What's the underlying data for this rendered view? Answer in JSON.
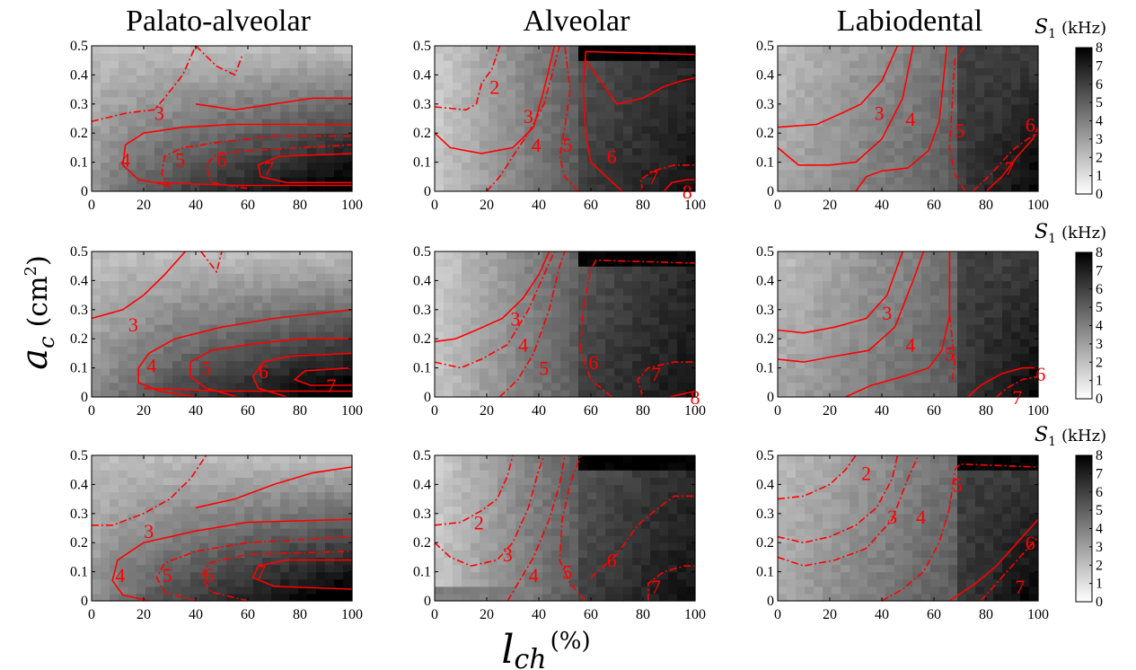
{
  "figure": {
    "columns": [
      "Palato-alveolar",
      "Alveolar",
      "Labiodental"
    ],
    "xlabel_main": "l",
    "xlabel_sub": "ch",
    "xlabel_unit": "(%)",
    "ylabel_main": "a",
    "ylabel_sub": "c",
    "ylabel_unit_open": "(cm",
    "ylabel_unit_sup": "2",
    "ylabel_unit_close": ")",
    "colorbar_label_main": "S",
    "colorbar_label_sub": "1",
    "colorbar_label_unit": "(kHz)",
    "colors": {
      "contour": "#ff0000",
      "frame": "#000000"
    }
  },
  "chart_data": [
    {
      "type": "heatmap",
      "row": 1,
      "column": "Palato-alveolar",
      "xlabel": "",
      "ylabel": "",
      "xlim": [
        0,
        100
      ],
      "ylim": [
        0,
        0.5
      ],
      "xticks": [
        "0",
        "20",
        "40",
        "60",
        "80",
        "100"
      ],
      "yticks": [
        "0",
        "0.1",
        "0.2",
        "0.3",
        "0.4",
        "0.5"
      ],
      "contour_labels": [
        {
          "text": "3",
          "x": 26,
          "y": 0.27
        },
        {
          "text": "4",
          "x": 13,
          "y": 0.11
        },
        {
          "text": "5",
          "x": 34,
          "y": 0.11
        },
        {
          "text": "6",
          "x": 50,
          "y": 0.11
        },
        {
          "text": "7",
          "x": 68,
          "y": 0.08
        }
      ]
    },
    {
      "type": "heatmap",
      "row": 1,
      "column": "Alveolar",
      "xlabel": "",
      "ylabel": "",
      "xlim": [
        0,
        100
      ],
      "ylim": [
        0,
        0.5
      ],
      "xticks": [
        "0",
        "20",
        "40",
        "60",
        "80",
        "100"
      ],
      "yticks": [
        "0",
        "0.1",
        "0.2",
        "0.3",
        "0.4",
        "0.5"
      ],
      "contour_labels": [
        {
          "text": "2",
          "x": 23,
          "y": 0.36
        },
        {
          "text": "3",
          "x": 36,
          "y": 0.26
        },
        {
          "text": "4",
          "x": 39,
          "y": 0.16
        },
        {
          "text": "5",
          "x": 51,
          "y": 0.16
        },
        {
          "text": "6",
          "x": 68,
          "y": 0.12
        },
        {
          "text": "7",
          "x": 84,
          "y": 0.05
        },
        {
          "text": "8",
          "x": 97,
          "y": 0.0
        }
      ]
    },
    {
      "type": "heatmap",
      "row": 1,
      "column": "Labiodental",
      "xlabel": "",
      "ylabel": "",
      "xlim": [
        0,
        100
      ],
      "ylim": [
        0,
        0.5
      ],
      "xticks": [
        "0",
        "20",
        "40",
        "60",
        "80",
        "100"
      ],
      "yticks": [
        "0",
        "0.1",
        "0.2",
        "0.3",
        "0.4",
        "0.5"
      ],
      "contour_labels": [
        {
          "text": "3",
          "x": 39,
          "y": 0.27
        },
        {
          "text": "4",
          "x": 51,
          "y": 0.25
        },
        {
          "text": "5",
          "x": 70,
          "y": 0.21
        },
        {
          "text": "6",
          "x": 97,
          "y": 0.23
        },
        {
          "text": "7",
          "x": 89,
          "y": 0.08
        }
      ]
    },
    {
      "type": "heatmap",
      "row": 2,
      "column": "Palato-alveolar",
      "xlabel": "",
      "ylabel": "",
      "xlim": [
        0,
        100
      ],
      "ylim": [
        0,
        0.5
      ],
      "xticks": [
        "0",
        "20",
        "40",
        "60",
        "80",
        "100"
      ],
      "yticks": [
        "0",
        "0.1",
        "0.2",
        "0.3",
        "0.4",
        "0.5"
      ],
      "contour_labels": [
        {
          "text": "3",
          "x": 16,
          "y": 0.25
        },
        {
          "text": "4",
          "x": 23,
          "y": 0.11
        },
        {
          "text": "5",
          "x": 44,
          "y": 0.1
        },
        {
          "text": "6",
          "x": 66,
          "y": 0.09
        },
        {
          "text": "7",
          "x": 92,
          "y": 0.04
        }
      ]
    },
    {
      "type": "heatmap",
      "row": 2,
      "column": "Alveolar",
      "xlabel": "",
      "ylabel": "",
      "xlim": [
        0,
        100
      ],
      "ylim": [
        0,
        0.5
      ],
      "xticks": [
        "0",
        "20",
        "40",
        "60",
        "80",
        "100"
      ],
      "yticks": [
        "0",
        "0.1",
        "0.2",
        "0.3",
        "0.4",
        "0.5"
      ],
      "contour_labels": [
        {
          "text": "3",
          "x": 31,
          "y": 0.27
        },
        {
          "text": "4",
          "x": 34,
          "y": 0.18
        },
        {
          "text": "5",
          "x": 42,
          "y": 0.1
        },
        {
          "text": "6",
          "x": 61,
          "y": 0.12
        },
        {
          "text": "7",
          "x": 85,
          "y": 0.08
        },
        {
          "text": "8",
          "x": 100,
          "y": 0.0
        }
      ]
    },
    {
      "type": "heatmap",
      "row": 2,
      "column": "Labiodental",
      "xlabel": "",
      "ylabel": "",
      "xlim": [
        0,
        100
      ],
      "ylim": [
        0,
        0.5
      ],
      "xticks": [
        "0",
        "20",
        "40",
        "60",
        "80",
        "100"
      ],
      "yticks": [
        "0",
        "0.1",
        "0.2",
        "0.3",
        "0.4",
        "0.5"
      ],
      "contour_labels": [
        {
          "text": "3",
          "x": 42,
          "y": 0.29
        },
        {
          "text": "4",
          "x": 51,
          "y": 0.18
        },
        {
          "text": "5",
          "x": 66,
          "y": 0.15
        },
        {
          "text": "6",
          "x": 101,
          "y": 0.08
        },
        {
          "text": "7",
          "x": 92,
          "y": 0.0
        }
      ]
    },
    {
      "type": "heatmap",
      "row": 3,
      "column": "Palato-alveolar",
      "xlabel": "",
      "ylabel": "",
      "xlim": [
        0,
        100
      ],
      "ylim": [
        0,
        0.5
      ],
      "xticks": [
        "0",
        "20",
        "40",
        "60",
        "80",
        "100"
      ],
      "yticks": [
        "0",
        "0.1",
        "0.2",
        "0.3",
        "0.4",
        "0.5"
      ],
      "contour_labels": [
        {
          "text": "3",
          "x": 22,
          "y": 0.24
        },
        {
          "text": "4",
          "x": 11,
          "y": 0.09
        },
        {
          "text": "5",
          "x": 29,
          "y": 0.09
        },
        {
          "text": "6",
          "x": 45,
          "y": 0.09
        },
        {
          "text": "7",
          "x": 65,
          "y": 0.1
        }
      ]
    },
    {
      "type": "heatmap",
      "row": 3,
      "column": "Alveolar",
      "xlabel": "",
      "ylabel": "",
      "xlim": [
        0,
        100
      ],
      "ylim": [
        0,
        0.5
      ],
      "xticks": [
        "0",
        "20",
        "40",
        "60",
        "80",
        "100"
      ],
      "yticks": [
        "0",
        "0.1",
        "0.2",
        "0.3",
        "0.4",
        "0.5"
      ],
      "contour_labels": [
        {
          "text": "2",
          "x": 17,
          "y": 0.27
        },
        {
          "text": "3",
          "x": 28,
          "y": 0.16
        },
        {
          "text": "4",
          "x": 38,
          "y": 0.09
        },
        {
          "text": "5",
          "x": 51,
          "y": 0.1
        },
        {
          "text": "6",
          "x": 68,
          "y": 0.14
        },
        {
          "text": "7",
          "x": 85,
          "y": 0.05
        }
      ]
    },
    {
      "type": "heatmap",
      "row": 3,
      "column": "Labiodental",
      "xlabel": "",
      "ylabel": "",
      "xlim": [
        0,
        100
      ],
      "ylim": [
        0,
        0.5
      ],
      "xticks": [
        "0",
        "20",
        "40",
        "60",
        "80",
        "100"
      ],
      "yticks": [
        "0",
        "0.1",
        "0.2",
        "0.3",
        "0.4",
        "0.5"
      ],
      "contour_labels": [
        {
          "text": "2",
          "x": 34,
          "y": 0.44
        },
        {
          "text": "3",
          "x": 44,
          "y": 0.29
        },
        {
          "text": "4",
          "x": 55,
          "y": 0.29
        },
        {
          "text": "5",
          "x": 69,
          "y": 0.4
        },
        {
          "text": "6",
          "x": 97,
          "y": 0.2
        },
        {
          "text": "7",
          "x": 93,
          "y": 0.05
        }
      ]
    }
  ],
  "colorbars": [
    {
      "row": 1,
      "range": [
        0,
        8
      ],
      "ticks": [
        "0",
        "1",
        "2",
        "3",
        "4",
        "5",
        "6",
        "7",
        "8"
      ]
    },
    {
      "row": 2,
      "range": [
        0,
        8
      ],
      "ticks": [
        "0",
        "1",
        "2",
        "3",
        "4",
        "5",
        "6",
        "7",
        "8"
      ]
    },
    {
      "row": 3,
      "range": [
        0,
        8
      ],
      "ticks": [
        "0",
        "1",
        "2",
        "3",
        "4",
        "5",
        "6",
        "7",
        "8"
      ]
    }
  ]
}
